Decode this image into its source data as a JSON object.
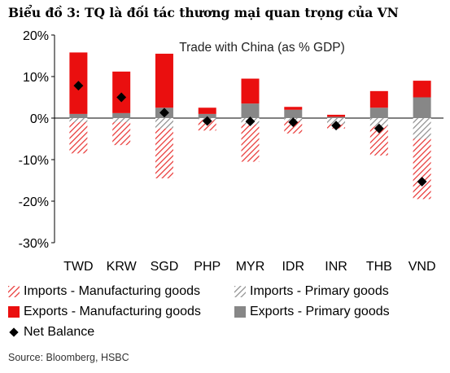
{
  "heading": "Biểu đồ 3: TQ là đối tác thương mại quan trọng của VN",
  "source": "Source: Bloomberg, HSBC",
  "colors": {
    "imports_mfg": "#e8312f",
    "imports_primary": "#8c8c8c",
    "exports_mfg": "#ea0f0f",
    "exports_primary": "#878787",
    "net_balance": "#000000"
  },
  "chart_data": {
    "type": "bar",
    "stacked": true,
    "title": "Trade with China (as % GDP)",
    "categories": [
      "TWD",
      "KRW",
      "SGD",
      "PHP",
      "MYR",
      "IDR",
      "INR",
      "THB",
      "VND"
    ],
    "ylim": [
      -30,
      20
    ],
    "yticks": [
      20,
      10,
      0,
      -10,
      -20,
      -30
    ],
    "ytick_labels": [
      "20%",
      "10%",
      "0%",
      "-10%",
      "-20%",
      "-30%"
    ],
    "grid": false,
    "legend_position": "bottom",
    "series": [
      {
        "name": "Imports - Manufacturing goods",
        "key": "imports_mfg",
        "style": "hatch",
        "values": [
          -7.5,
          -5.5,
          -12,
          -2.5,
          -9,
          -3,
          -1,
          -7,
          -14.5
        ]
      },
      {
        "name": "Imports - Primary goods",
        "key": "imports_primary",
        "style": "hatch",
        "values": [
          -1,
          -1,
          -2.5,
          -0.5,
          -1.5,
          -0.7,
          -1.5,
          -2,
          -5
        ]
      },
      {
        "name": "Exports - Manufacturing goods",
        "key": "exports_mfg",
        "style": "solid",
        "values": [
          14.8,
          10,
          13,
          1.5,
          6,
          0.7,
          0.5,
          4,
          4
        ]
      },
      {
        "name": "Exports - Primary goods",
        "key": "exports_primary",
        "style": "solid",
        "values": [
          1,
          1.2,
          2.5,
          1,
          3.5,
          2,
          0.3,
          2.5,
          5
        ]
      },
      {
        "name": "Net Balance",
        "key": "net_balance",
        "style": "marker",
        "values": [
          7.8,
          5,
          1.3,
          -0.7,
          -0.8,
          -1,
          -1.8,
          -2.5,
          -15.3
        ]
      }
    ]
  }
}
